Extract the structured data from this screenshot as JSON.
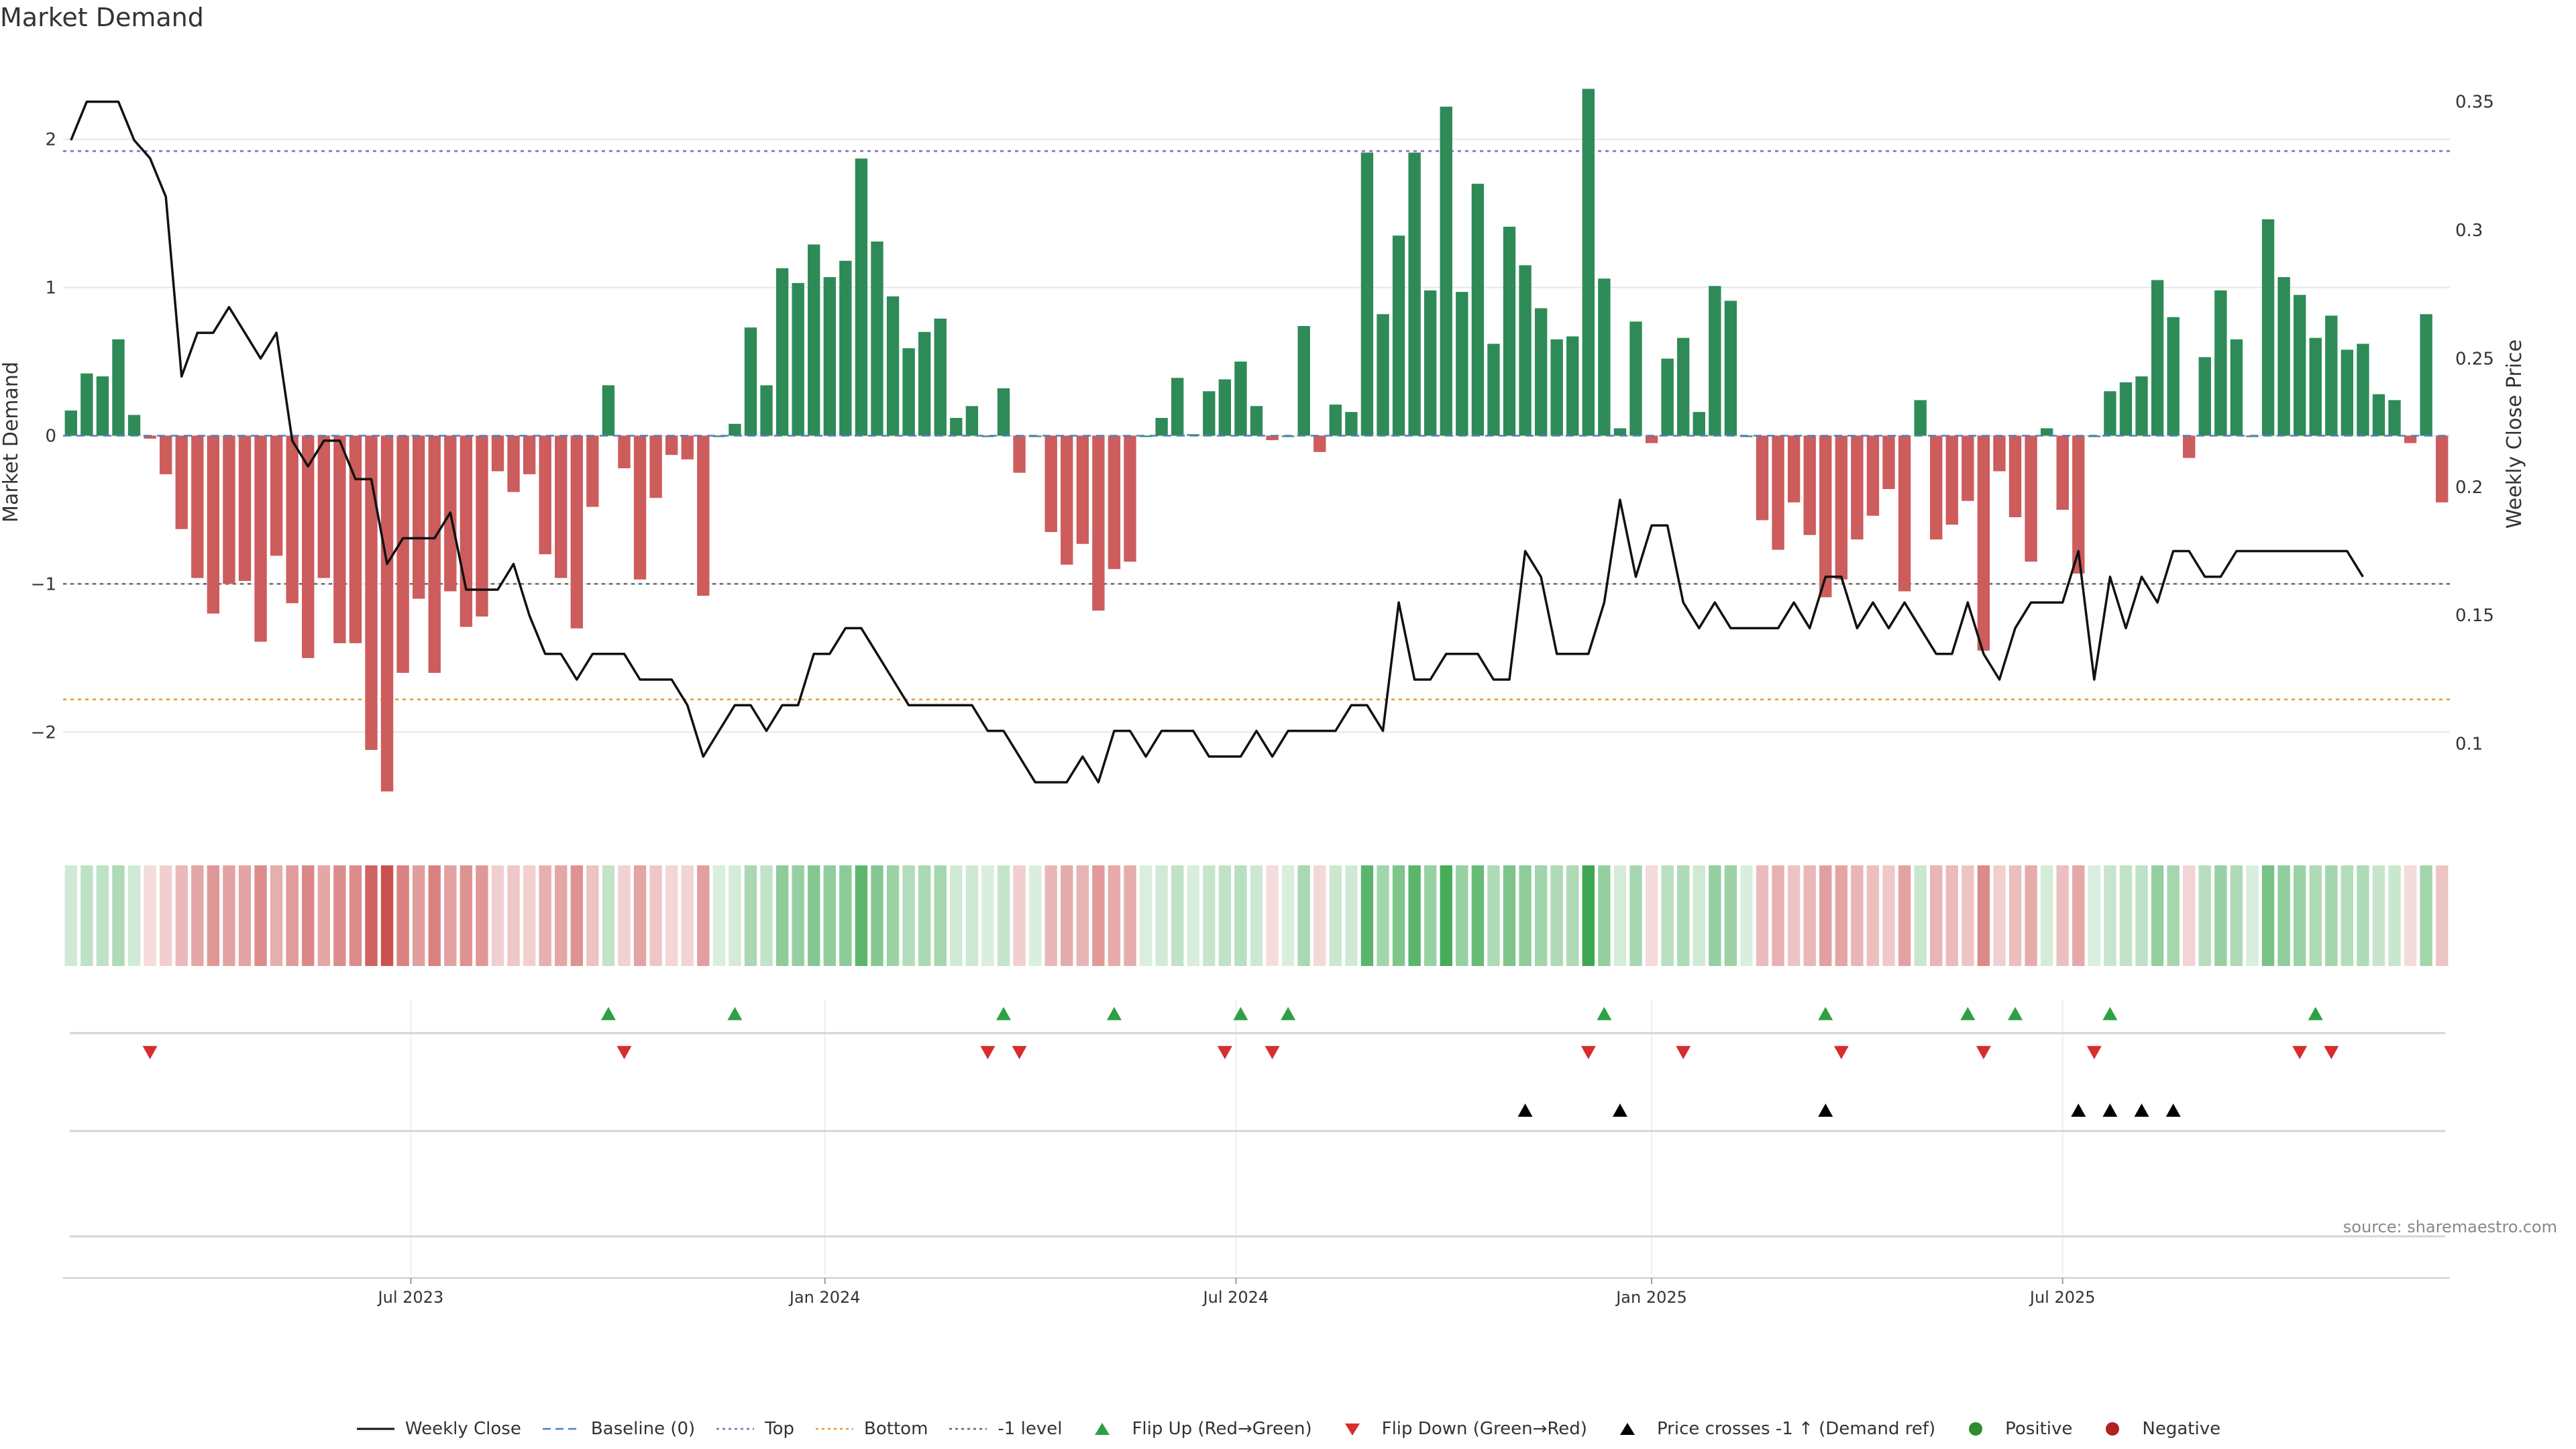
{
  "title": "Market Demand",
  "source": "source: sharemaestro.com",
  "chart_data": {
    "type": "bar",
    "title": "Market Demand",
    "xlabel": "",
    "ylabel": "Market Demand",
    "y2label": "Weekly Close Price",
    "ylim": [
      -2.65,
      2.6
    ],
    "y2lim": [
      0.067,
      0.37
    ],
    "yticks": [
      -2,
      -1,
      0,
      1,
      2
    ],
    "y2ticks": [
      0.1,
      0.15,
      0.2,
      0.25,
      0.3,
      0.35
    ],
    "ytick_labels": [
      "−2",
      "−1",
      "0",
      "1",
      "2"
    ],
    "y2tick_labels": [
      "0.1",
      "0.15",
      "0.2",
      "0.25",
      "0.3",
      "0.35"
    ],
    "xticks": [
      {
        "label": "Jul 2023",
        "week": 21.5
      },
      {
        "label": "Jan 2024",
        "week": 47.7
      },
      {
        "label": "Jul 2024",
        "week": 73.7
      },
      {
        "label": "Jan 2025",
        "week": 100
      },
      {
        "label": "Jul 2025",
        "week": 126
      }
    ],
    "reference_lines": {
      "top": 1.92,
      "bottom": -1.78,
      "minus_one": -1,
      "baseline": 0
    },
    "demand": [
      0.17,
      0.42,
      0.4,
      0.65,
      0.14,
      -0.02,
      -0.26,
      -0.63,
      -0.96,
      -1.2,
      -1.0,
      -0.98,
      -1.39,
      -0.81,
      -1.13,
      -1.5,
      -0.96,
      -1.4,
      -1.4,
      -2.12,
      -2.4,
      -1.6,
      -1.1,
      -1.6,
      -1.05,
      -1.29,
      -1.22,
      -0.24,
      -0.38,
      -0.26,
      -0.8,
      -0.96,
      -1.3,
      -0.48,
      0.34,
      -0.22,
      -0.97,
      -0.42,
      -0.13,
      -0.16,
      -1.08,
      0.0,
      0.08,
      0.73,
      0.34,
      1.13,
      1.03,
      1.29,
      1.07,
      1.18,
      1.87,
      1.31,
      0.94,
      0.59,
      0.7,
      0.79,
      0.12,
      0.2,
      0.0,
      0.32,
      -0.25,
      0.0,
      -0.65,
      -0.87,
      -0.73,
      -1.18,
      -0.9,
      -0.85,
      0.0,
      0.12,
      0.39,
      0.01,
      0.3,
      0.38,
      0.5,
      0.2,
      -0.03,
      0.0,
      0.74,
      -0.11,
      0.21,
      0.16,
      1.91,
      0.82,
      1.35,
      1.91,
      0.98,
      2.22,
      0.97,
      1.7,
      0.62,
      1.41,
      1.15,
      0.86,
      0.65,
      0.67,
      2.34,
      1.06,
      0.05,
      0.77,
      -0.05,
      0.52,
      0.66,
      0.16,
      1.01,
      0.91,
      0.0,
      -0.57,
      -0.77,
      -0.45,
      -0.67,
      -1.09,
      -0.97,
      -0.7,
      -0.54,
      -0.36,
      -1.05,
      0.24,
      -0.7,
      -0.6,
      -0.44,
      -1.45,
      -0.24,
      -0.55,
      -0.85,
      0.05,
      -0.5,
      -0.93,
      0.0,
      0.3,
      0.36,
      0.4,
      1.05,
      0.8,
      -0.15,
      0.53,
      0.98,
      0.65,
      0.0,
      1.46,
      1.07,
      0.95,
      0.66,
      0.81,
      0.58,
      0.62,
      0.28,
      0.24,
      -0.05,
      0.82,
      -0.45
    ],
    "weekly_close": [
      0.335,
      0.35,
      0.35,
      0.35,
      0.335,
      0.328,
      0.313,
      0.243,
      0.26,
      0.26,
      0.27,
      0.26,
      0.25,
      0.26,
      0.218,
      0.208,
      0.218,
      0.218,
      0.203,
      0.203,
      0.17,
      0.18,
      0.18,
      0.18,
      0.19,
      0.16,
      0.16,
      0.16,
      0.17,
      0.15,
      0.135,
      0.135,
      0.125,
      0.135,
      0.135,
      0.135,
      0.125,
      0.125,
      0.125,
      0.115,
      0.095,
      0.105,
      0.115,
      0.115,
      0.105,
      0.115,
      0.115,
      0.135,
      0.135,
      0.145,
      0.145,
      0.135,
      0.125,
      0.115,
      0.115,
      0.115,
      0.115,
      0.115,
      0.105,
      0.105,
      0.095,
      0.085,
      0.085,
      0.085,
      0.095,
      0.085,
      0.105,
      0.105,
      0.095,
      0.105,
      0.105,
      0.105,
      0.095,
      0.095,
      0.095,
      0.105,
      0.095,
      0.105,
      0.105,
      0.105,
      0.105,
      0.115,
      0.115,
      0.105,
      0.155,
      0.125,
      0.125,
      0.135,
      0.135,
      0.135,
      0.125,
      0.125,
      0.175,
      0.165,
      0.135,
      0.135,
      0.135,
      0.155,
      0.195,
      0.165,
      0.185,
      0.185,
      0.155,
      0.145,
      0.155,
      0.145,
      0.145,
      0.145,
      0.145,
      0.155,
      0.145,
      0.165,
      0.165,
      0.145,
      0.155,
      0.145,
      0.155,
      0.145,
      0.135,
      0.135,
      0.155,
      0.135,
      0.125,
      0.145,
      0.155,
      0.155,
      0.155,
      0.175,
      0.125,
      0.165,
      0.145,
      0.165,
      0.155,
      0.175,
      0.175,
      0.165,
      0.165,
      0.175,
      0.175,
      0.175,
      0.175,
      0.175,
      0.175,
      0.175,
      0.175,
      0.165
    ],
    "flip_up_weeks": [
      34,
      42,
      59,
      66,
      74,
      77,
      97,
      111,
      120,
      123,
      129,
      142
    ],
    "flip_down_weeks": [
      5,
      35,
      58,
      60,
      73,
      76,
      96,
      102,
      112,
      121,
      128,
      141,
      143
    ],
    "price_cross_weeks": [
      92,
      98,
      111,
      127,
      129,
      131,
      133
    ],
    "legend": [
      {
        "name": "Weekly Close",
        "marker": "solid-line",
        "color": "#111111"
      },
      {
        "name": "Baseline (0)",
        "marker": "dashed-line",
        "color": "#4f7fc0"
      },
      {
        "name": "Top",
        "marker": "dotted-line",
        "color": "#7f6fb0"
      },
      {
        "name": "Bottom",
        "marker": "dotted-line",
        "color": "#e69a2e"
      },
      {
        "name": "-1 level",
        "marker": "dotted-line",
        "color": "#666666"
      },
      {
        "name": "Flip Up (Red→Green)",
        "marker": "triangle-up",
        "color": "#2ea043"
      },
      {
        "name": "Flip Down (Green→Red)",
        "marker": "triangle-down",
        "color": "#d62d2d"
      },
      {
        "name": "Price crosses -1 ↑ (Demand ref)",
        "marker": "triangle-up",
        "color": "#000000"
      },
      {
        "name": "Positive",
        "marker": "circle",
        "color": "#2e8b2e"
      },
      {
        "name": "Negative",
        "marker": "circle",
        "color": "#b22222"
      }
    ]
  },
  "colors": {
    "positive_bar": "#2e8b57",
    "negative_bar": "#cd5c5c",
    "close_line": "#111111",
    "flip_up": "#2ea043",
    "flip_down": "#d62d2d",
    "grid": "#e6e6e6"
  }
}
